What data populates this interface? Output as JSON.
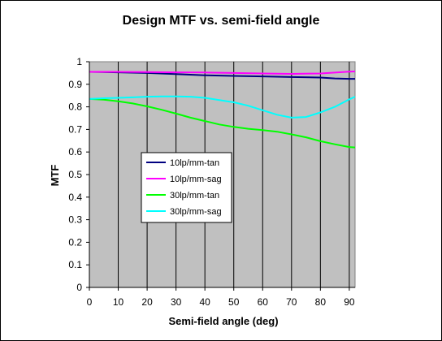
{
  "chart_data": {
    "type": "line",
    "title": "Design MTF vs. semi-field angle",
    "xlabel": "Semi-field angle (deg)",
    "ylabel": "MTF",
    "xlim": [
      0,
      92
    ],
    "ylim": [
      0,
      1
    ],
    "xticks": [
      0,
      10,
      20,
      30,
      40,
      50,
      60,
      70,
      80,
      90
    ],
    "yticks": [
      0,
      0.1,
      0.2,
      0.3,
      0.4,
      0.5,
      0.6,
      0.7,
      0.8,
      0.9,
      1
    ],
    "ytick_labels": [
      "0",
      "0.1",
      "0.2",
      "0.3",
      "0.4",
      "0.5",
      "0.6",
      "0.7",
      "0.8",
      "0.9",
      "1"
    ],
    "xtick_labels": [
      "0",
      "10",
      "20",
      "30",
      "40",
      "50",
      "60",
      "70",
      "80",
      "90"
    ],
    "grid": true,
    "plot_background": "#c0c0c0",
    "legend_position": "center-left",
    "series": [
      {
        "name": "10lp/mm-tan",
        "color": "#000080",
        "x": [
          0,
          10,
          20,
          30,
          40,
          50,
          60,
          70,
          80,
          85,
          90,
          92
        ],
        "y": [
          0.955,
          0.953,
          0.95,
          0.945,
          0.94,
          0.937,
          0.935,
          0.932,
          0.93,
          0.926,
          0.924,
          0.924
        ]
      },
      {
        "name": "10lp/mm-sag",
        "color": "#ff00ff",
        "x": [
          0,
          10,
          20,
          30,
          40,
          50,
          60,
          70,
          80,
          90,
          92
        ],
        "y": [
          0.955,
          0.955,
          0.954,
          0.953,
          0.952,
          0.95,
          0.948,
          0.946,
          0.948,
          0.956,
          0.957
        ]
      },
      {
        "name": "30lp/mm-tan",
        "color": "#00ff00",
        "x": [
          0,
          5,
          10,
          15,
          20,
          25,
          30,
          35,
          40,
          45,
          50,
          55,
          60,
          65,
          70,
          75,
          80,
          85,
          90,
          92
        ],
        "y": [
          0.835,
          0.832,
          0.825,
          0.815,
          0.802,
          0.787,
          0.77,
          0.752,
          0.737,
          0.722,
          0.711,
          0.703,
          0.697,
          0.69,
          0.678,
          0.665,
          0.648,
          0.634,
          0.622,
          0.62
        ]
      },
      {
        "name": "30lp/mm-sag",
        "color": "#00ffff",
        "x": [
          0,
          5,
          10,
          15,
          20,
          25,
          30,
          35,
          40,
          45,
          50,
          55,
          60,
          65,
          70,
          75,
          80,
          85,
          90,
          92
        ],
        "y": [
          0.835,
          0.838,
          0.84,
          0.842,
          0.845,
          0.846,
          0.846,
          0.845,
          0.84,
          0.83,
          0.82,
          0.805,
          0.785,
          0.765,
          0.752,
          0.755,
          0.775,
          0.8,
          0.833,
          0.845
        ]
      }
    ]
  }
}
